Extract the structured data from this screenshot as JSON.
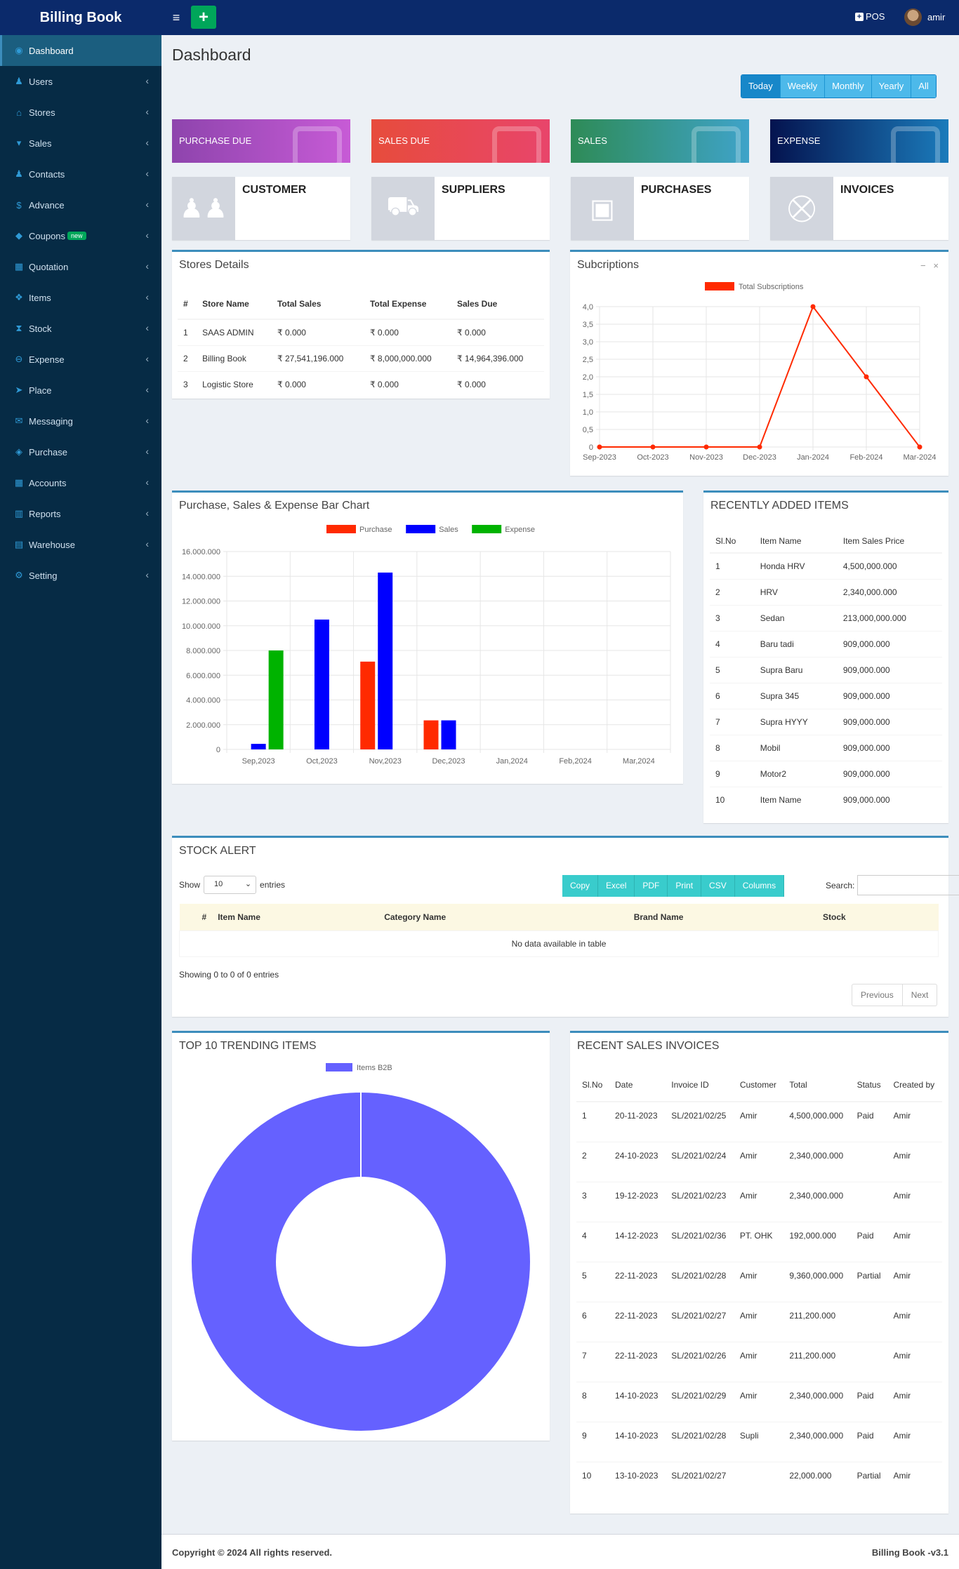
{
  "topbar": {
    "brand": "Billing Book",
    "menu_icon": "bars-icon",
    "add_icon": "plus-icon",
    "add_label": "+",
    "pos_label": "POS",
    "user_name": "amir"
  },
  "sidebar": [
    {
      "label": "Dashboard",
      "icon": "dashboard-icon",
      "active": true,
      "glyph": "◉"
    },
    {
      "label": "Users",
      "icon": "users-icon",
      "glyph": "♟"
    },
    {
      "label": "Stores",
      "icon": "home-icon",
      "glyph": "⌂"
    },
    {
      "label": "Sales",
      "icon": "cart-icon",
      "glyph": "▾"
    },
    {
      "label": "Contacts",
      "icon": "contacts-icon",
      "glyph": "♟"
    },
    {
      "label": "Advance",
      "icon": "dollar-icon",
      "glyph": "$"
    },
    {
      "label": "Coupons",
      "icon": "tags-icon",
      "badge": "new",
      "glyph": "◆"
    },
    {
      "label": "Quotation",
      "icon": "calendar-icon",
      "glyph": "▦"
    },
    {
      "label": "Items",
      "icon": "cubes-icon",
      "glyph": "❖"
    },
    {
      "label": "Stock",
      "icon": "hourglass-icon",
      "glyph": "⧗"
    },
    {
      "label": "Expense",
      "icon": "minus-circle-icon",
      "glyph": "⊖"
    },
    {
      "label": "Place",
      "icon": "paper-plane-icon",
      "glyph": "➤"
    },
    {
      "label": "Messaging",
      "icon": "envelope-icon",
      "glyph": "✉"
    },
    {
      "label": "Purchase",
      "icon": "cube-icon",
      "glyph": "◈"
    },
    {
      "label": "Accounts",
      "icon": "th-icon",
      "glyph": "▦"
    },
    {
      "label": "Reports",
      "icon": "bar-chart-icon",
      "glyph": "▥"
    },
    {
      "label": "Warehouse",
      "icon": "book-icon",
      "glyph": "▤"
    },
    {
      "label": "Setting",
      "icon": "cogs-icon",
      "glyph": "⚙"
    }
  ],
  "page_title": "Dashboard",
  "range_buttons": [
    "Today",
    "Weekly",
    "Monthly",
    "Yearly",
    "All"
  ],
  "info_boxes": [
    {
      "label": "PURCHASE DUE",
      "grad": "linear-gradient(90deg,#8e44ad,#c75bd6)"
    },
    {
      "label": "SALES DUE",
      "grad": "linear-gradient(90deg,#e74c3c,#e8456b)"
    },
    {
      "label": "SALES",
      "grad": "linear-gradient(90deg,#2e8b57,#3fa3c9)"
    },
    {
      "label": "EXPENSE",
      "grad": "linear-gradient(90deg,#04134f,#1b7bbb)"
    }
  ],
  "stat_boxes": [
    {
      "label": "CUSTOMER",
      "icon": "users-icon",
      "glyph": "♟♟"
    },
    {
      "label": "SUPPLIERS",
      "icon": "truck-icon",
      "glyph": "⛟"
    },
    {
      "label": "PURCHASES",
      "icon": "briefcase-icon",
      "glyph": "▣"
    },
    {
      "label": "INVOICES",
      "icon": "cart-icon",
      "glyph": "⛒"
    }
  ],
  "stores": {
    "title": "Stores Details",
    "headers": [
      "#",
      "Store Name",
      "Total Sales",
      "Total Expense",
      "Sales Due"
    ],
    "rows": [
      [
        "1",
        "SAAS ADMIN",
        "₹ 0.000",
        "₹ 0.000",
        "₹ 0.000"
      ],
      [
        "2",
        "Billing Book",
        "₹ 27,541,196.000",
        "₹ 8,000,000.000",
        "₹ 14,964,396.000"
      ],
      [
        "3",
        "Logistic Store",
        "₹ 0.000",
        "₹ 0.000",
        "₹ 0.000"
      ]
    ]
  },
  "subs": {
    "title": "Subcriptions",
    "tools": "−  ×"
  },
  "bar": {
    "title": "Purchase, Sales & Expense Bar Chart"
  },
  "recent_items": {
    "title": "RECENTLY ADDED ITEMS",
    "headers": [
      "Sl.No",
      "Item Name",
      "Item Sales Price"
    ],
    "rows": [
      [
        "1",
        "Honda HRV",
        "4,500,000.000"
      ],
      [
        "2",
        "HRV",
        "2,340,000.000"
      ],
      [
        "3",
        "Sedan",
        "213,000,000.000"
      ],
      [
        "4",
        "Baru tadi",
        "909,000.000"
      ],
      [
        "5",
        "Supra Baru",
        "909,000.000"
      ],
      [
        "6",
        "Supra 345",
        "909,000.000"
      ],
      [
        "7",
        "Supra HYYY",
        "909,000.000"
      ],
      [
        "8",
        "Mobil",
        "909,000.000"
      ],
      [
        "9",
        "Motor2",
        "909,000.000"
      ],
      [
        "10",
        "Item Name",
        "909,000.000"
      ]
    ]
  },
  "stock": {
    "title": "STOCK ALERT",
    "show": "Show",
    "length": "10",
    "entries": "entries",
    "buttons": [
      "Copy",
      "Excel",
      "PDF",
      "Print",
      "CSV",
      "Columns"
    ],
    "search_label": "Search:",
    "headers": [
      "#",
      "Item Name",
      "Category Name",
      "Brand Name",
      "Stock"
    ],
    "empty": "No data available in table",
    "info": "Showing 0 to 0 of 0 entries",
    "prev": "Previous",
    "next": "Next"
  },
  "trending": {
    "title": "TOP 10 TRENDING ITEMS"
  },
  "invoices": {
    "title": "RECENT SALES INVOICES",
    "headers": [
      "Sl.No",
      "Date",
      "Invoice ID",
      "Customer",
      "Total",
      "Status",
      "Created by"
    ],
    "rows": [
      [
        "1",
        "20-11-2023",
        "SL/2021/02/25",
        "Amir",
        "4,500,000.000",
        "Paid",
        "Amir"
      ],
      [
        "2",
        "24-10-2023",
        "SL/2021/02/24",
        "Amir",
        "2,340,000.000",
        "",
        "Amir"
      ],
      [
        "3",
        "19-12-2023",
        "SL/2021/02/23",
        "Amir",
        "2,340,000.000",
        "",
        "Amir"
      ],
      [
        "4",
        "14-12-2023",
        "SL/2021/02/36",
        "PT. OHK",
        "192,000.000",
        "Paid",
        "Amir"
      ],
      [
        "5",
        "22-11-2023",
        "SL/2021/02/28",
        "Amir",
        "9,360,000.000",
        "Partial",
        "Amir"
      ],
      [
        "6",
        "22-11-2023",
        "SL/2021/02/27",
        "Amir",
        "211,200.000",
        "",
        "Amir"
      ],
      [
        "7",
        "22-11-2023",
        "SL/2021/02/26",
        "Amir",
        "211,200.000",
        "",
        "Amir"
      ],
      [
        "8",
        "14-10-2023",
        "SL/2021/02/29",
        "Amir",
        "2,340,000.000",
        "Paid",
        "Amir"
      ],
      [
        "9",
        "14-10-2023",
        "SL/2021/02/28",
        "Supli",
        "2,340,000.000",
        "Paid",
        "Amir"
      ],
      [
        "10",
        "13-10-2023",
        "SL/2021/02/27",
        "",
        "22,000.000",
        "Partial",
        "Amir"
      ]
    ]
  },
  "footer": {
    "copyright": "Copyright © 2024 All rights reserved.",
    "version": "Billing Book -v3.1"
  },
  "chart_data": [
    {
      "type": "line",
      "categories": [
        "Sep-2023",
        "Oct-2023",
        "Nov-2023",
        "Dec-2023",
        "Jan-2024",
        "Feb-2024",
        "Mar-2024"
      ],
      "series": [
        {
          "name": "Total Subscriptions",
          "values": [
            0,
            0,
            0,
            0,
            4,
            2,
            0
          ],
          "color": "#ff2a00"
        }
      ],
      "ylim": [
        0,
        4
      ],
      "yticks": [
        "0",
        "0,5",
        "1,0",
        "1,5",
        "2,0",
        "2,5",
        "3,0",
        "3,5",
        "4,0"
      ],
      "grid": true,
      "legend": "top"
    },
    {
      "type": "bar",
      "categories": [
        "Sep,2023",
        "Oct,2023",
        "Nov,2023",
        "Dec,2023",
        "Jan,2024",
        "Feb,2024",
        "Mar,2024"
      ],
      "series": [
        {
          "name": "Purchase",
          "values": [
            0,
            0,
            7100000,
            2350000,
            0,
            0,
            0
          ],
          "color": "#ff2a00"
        },
        {
          "name": "Sales",
          "values": [
            450000,
            10500000,
            14300000,
            2350000,
            0,
            0,
            0
          ],
          "color": "#0000ff"
        },
        {
          "name": "Expense",
          "values": [
            8000000,
            0,
            0,
            0,
            0,
            0,
            0
          ],
          "color": "#00b300"
        }
      ],
      "ylim": [
        0,
        16000000
      ],
      "yticks": [
        "0",
        "2.000.000",
        "4.000.000",
        "6.000.000",
        "8.000.000",
        "10.000.000",
        "12.000.000",
        "14.000.000",
        "16.000.000"
      ],
      "grid": true,
      "legend": "top"
    },
    {
      "type": "pie",
      "donut": true,
      "categories": [
        "Items B2B"
      ],
      "values": [
        100
      ],
      "colors": [
        "#6561ff"
      ],
      "legend": "top"
    }
  ]
}
